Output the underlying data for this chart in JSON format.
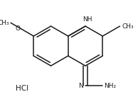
{
  "bg_color": "#ffffff",
  "line_color": "#1a1a1a",
  "line_width": 1.1,
  "text_color": "#1a1a1a",
  "font_size": 6.5,
  "font_size_hcl": 7.5,
  "HCl_label": "HCl",
  "NH_label": "NH",
  "OCH3_label": "O",
  "CH3_label": "CH₃",
  "CH3_group": "CH₃",
  "NH2_label": "NH₂",
  "N_label": "N",
  "methoxy_O": "O",
  "methoxy_CH3": "CH₃"
}
